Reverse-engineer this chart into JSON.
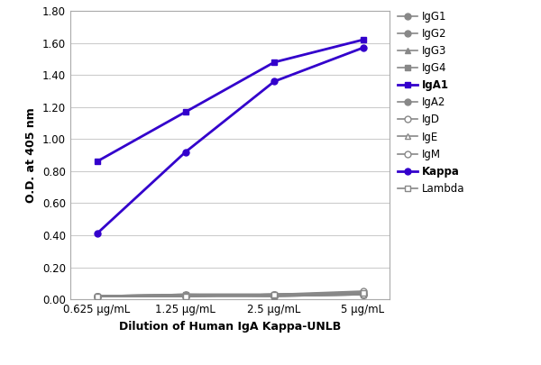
{
  "x_labels": [
    "0.625 μg/mL",
    "1.25 μg/mL",
    "2.5 μg/mL",
    "5 μg/mL"
  ],
  "x_values": [
    0,
    1,
    2,
    3
  ],
  "series": {
    "IgG1": {
      "values": [
        0.02,
        0.02,
        0.02,
        0.03
      ],
      "color": "#888888",
      "marker": "o",
      "lw": 1.5,
      "bold": false,
      "mfc": "#888888"
    },
    "IgG2": {
      "values": [
        0.02,
        0.03,
        0.02,
        0.03
      ],
      "color": "#888888",
      "marker": "o",
      "lw": 1.5,
      "bold": false,
      "mfc": "#888888"
    },
    "IgG3": {
      "values": [
        0.02,
        0.02,
        0.02,
        0.03
      ],
      "color": "#888888",
      "marker": "^",
      "lw": 1.5,
      "bold": false,
      "mfc": "#888888"
    },
    "IgG4": {
      "values": [
        0.02,
        0.03,
        0.03,
        0.04
      ],
      "color": "#888888",
      "marker": "s",
      "lw": 1.5,
      "bold": false,
      "mfc": "#888888"
    },
    "IgA1": {
      "values": [
        0.86,
        1.17,
        1.48,
        1.62
      ],
      "color": "#3300cc",
      "marker": "s",
      "lw": 2.0,
      "bold": true,
      "mfc": "#3300cc"
    },
    "IgA2": {
      "values": [
        0.02,
        0.03,
        0.03,
        0.04
      ],
      "color": "#888888",
      "marker": "o",
      "lw": 1.5,
      "bold": false,
      "mfc": "#888888"
    },
    "IgD": {
      "values": [
        0.02,
        0.02,
        0.03,
        0.03
      ],
      "color": "#888888",
      "marker": "o",
      "lw": 1.5,
      "bold": false,
      "mfc": "white"
    },
    "IgE": {
      "values": [
        0.02,
        0.02,
        0.03,
        0.03
      ],
      "color": "#888888",
      "marker": "^",
      "lw": 1.5,
      "bold": false,
      "mfc": "white"
    },
    "IgM": {
      "values": [
        0.02,
        0.02,
        0.03,
        0.05
      ],
      "color": "#888888",
      "marker": "o",
      "lw": 1.5,
      "bold": false,
      "mfc": "white"
    },
    "Kappa": {
      "values": [
        0.41,
        0.92,
        1.36,
        1.57
      ],
      "color": "#3300cc",
      "marker": "o",
      "lw": 2.0,
      "bold": true,
      "mfc": "#3300cc"
    },
    "Lambda": {
      "values": [
        0.02,
        0.02,
        0.03,
        0.04
      ],
      "color": "#888888",
      "marker": "s",
      "lw": 1.5,
      "bold": false,
      "mfc": "white"
    }
  },
  "legend_order": [
    "IgG1",
    "IgG2",
    "IgG3",
    "IgG4",
    "IgA1",
    "IgA2",
    "IgD",
    "IgE",
    "IgM",
    "Kappa",
    "Lambda"
  ],
  "ylabel": "O.D. at 405 nm",
  "xlabel": "Dilution of Human IgA Kappa-UNLB",
  "ylim": [
    0.0,
    1.8
  ],
  "yticks": [
    0.0,
    0.2,
    0.4,
    0.6,
    0.8,
    1.0,
    1.2,
    1.4,
    1.6,
    1.8
  ],
  "ytick_labels": [
    "0.00",
    "0.20",
    "0.40",
    "0.60",
    "0.80",
    "1.00",
    "1.20",
    "1.40",
    "1.60",
    "1.80"
  ],
  "bg_color": "#ffffff",
  "plot_bg": "#ffffff",
  "grid_color": "#cccccc"
}
